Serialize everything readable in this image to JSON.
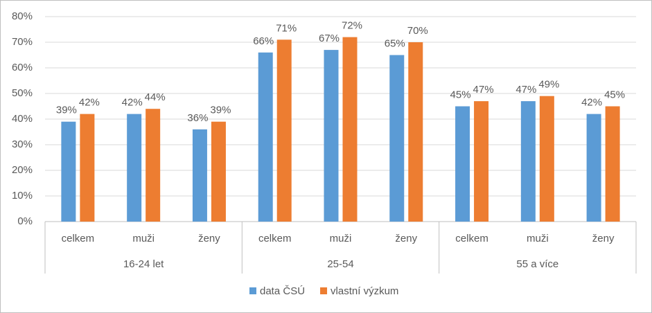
{
  "chart_data": {
    "type": "bar",
    "groups": [
      {
        "name": "16-24 let",
        "categories": [
          "celkem",
          "muži",
          "ženy"
        ]
      },
      {
        "name": "25-54",
        "categories": [
          "celkem",
          "muži",
          "ženy"
        ]
      },
      {
        "name": "55 a více",
        "categories": [
          "celkem",
          "muži",
          "ženy"
        ]
      }
    ],
    "series": [
      {
        "name": "data ČSÚ",
        "color": "#5b9bd5",
        "values": [
          39,
          42,
          36,
          66,
          67,
          65,
          45,
          47,
          42
        ],
        "value_labels": [
          "39%",
          "42%",
          "36%",
          "66%",
          "67%",
          "65%",
          "45%",
          "47%",
          "42%"
        ]
      },
      {
        "name": "vlastní výzkum",
        "color": "#ed7d31",
        "values": [
          42,
          44,
          39,
          71,
          72,
          70,
          47,
          49,
          45
        ],
        "value_labels": [
          "42%",
          "44%",
          "39%",
          "71%",
          "72%",
          "70%",
          "47%",
          "49%",
          "45%"
        ]
      }
    ],
    "ylim": [
      0,
      80
    ],
    "yticks": [
      {
        "value": 0,
        "label": "0%"
      },
      {
        "value": 10,
        "label": "10%"
      },
      {
        "value": 20,
        "label": "20%"
      },
      {
        "value": 30,
        "label": "30%"
      },
      {
        "value": 40,
        "label": "40%"
      },
      {
        "value": 50,
        "label": "50%"
      },
      {
        "value": 60,
        "label": "60%"
      },
      {
        "value": 70,
        "label": "70%"
      },
      {
        "value": 80,
        "label": "80%"
      }
    ],
    "grid": true,
    "legend": "bottom"
  }
}
